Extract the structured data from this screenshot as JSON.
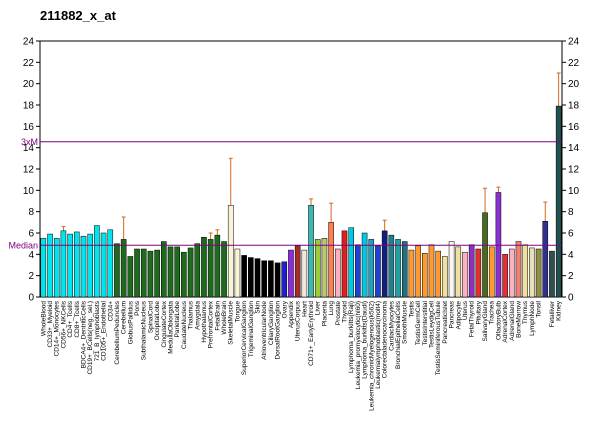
{
  "chart_data": {
    "type": "bar",
    "title": "211882_x_at",
    "categories": [
      "WholeBlood",
      "CD33+_Myeloid",
      "CD14+_Monocytes",
      "CD56+_NKCells",
      "CD4+_Tcells",
      "CD8+_Tcells",
      "BDCA4+_DentriticCells",
      "CD19+_BCells(neg._sel.)",
      "721_B_lymphoblasts",
      "CD105+_Endothelial",
      "CD34+",
      "CerebellumPeduncles",
      "Cerebellum",
      "GlobusPallidus",
      "Pons",
      "SubthalamicNucleus",
      "SpinalCord",
      "OccipitalLobe",
      "CingulateCortex",
      "MedullaOblongata",
      "ParietalLobe",
      "CaudateNucleus",
      "Thalamus",
      "Amygdala",
      "Hypothalamus",
      "PrefrontalCortex",
      "FetalBrain",
      "WholeBrain",
      "SkeletalMuscle",
      "Tongue",
      "SuperiorCervicalGanglion",
      "TrigeminalGanglion",
      "Skin",
      "AtrioventricularNode",
      "CiliaryGanglion",
      "DorsalRootGanglion",
      "Ovary",
      "Appendix",
      "UterusCorpus",
      "Heart",
      "CD71+_EarlyErythroid",
      "Liver",
      "Placenta",
      "Lung",
      "Prostate",
      "Thyroid",
      "Lymphoma_burkitts(Raji)",
      "Leukemia_promyelocytic(hl60)",
      "Lymphoma_burkitts(Daudi)",
      "Leukemia_chronicMyelogenous(k562)",
      "Leukemialymphoblastic(molt4)",
      "Colorectaladenocarcinoma",
      "CardiacMyocytes",
      "BronchialEpithelialCells",
      "SmoothMuscle",
      "Testis",
      "TestisGermCell",
      "TestisInterstitial",
      "TestisLeydigCell",
      "TestisSeminiferousTubule",
      "PancreaticIslet",
      "Pancreas",
      "Adipocyte",
      "Uterus",
      "FetalThyroid",
      "Pituitary",
      "SalivaryGland",
      "Trachea",
      "OlfactoryBulb",
      "AdrenalCortex",
      "AdrenalGland",
      "BoneMarrow",
      "Thymus",
      "LymphNode",
      "Tonsil",
      null,
      "Fetalliver",
      "Kidney"
    ],
    "values": [
      5.5,
      5.9,
      5.5,
      6.2,
      5.9,
      6.1,
      5.7,
      5.9,
      6.7,
      6.0,
      6.3,
      5.0,
      5.4,
      3.8,
      4.5,
      4.5,
      4.3,
      4.4,
      5.2,
      4.7,
      4.7,
      4.2,
      4.6,
      5.0,
      5.6,
      5.4,
      5.8,
      5.2,
      8.6,
      4.5,
      3.9,
      3.7,
      3.6,
      3.4,
      3.4,
      3.2,
      3.3,
      4.4,
      4.8,
      4.4,
      8.6,
      5.4,
      5.5,
      7.0,
      4.5,
      6.2,
      6.5,
      4.9,
      6.0,
      5.4,
      4.8,
      6.2,
      5.8,
      5.4,
      5.2,
      4.4,
      4.8,
      4.1,
      4.9,
      4.3,
      3.8,
      5.2,
      4.7,
      4.2,
      4.9,
      4.5,
      7.9,
      4.7,
      9.8,
      4.0,
      4.5,
      5.2,
      4.9,
      4.6,
      4.5,
      7.1,
      4.3,
      17.9
    ],
    "errors": [
      null,
      null,
      null,
      0.4,
      null,
      null,
      null,
      null,
      null,
      null,
      null,
      null,
      2.1,
      null,
      null,
      null,
      null,
      null,
      null,
      null,
      null,
      null,
      null,
      null,
      null,
      0.6,
      0.5,
      null,
      4.4,
      null,
      null,
      null,
      null,
      null,
      null,
      null,
      null,
      null,
      null,
      null,
      0.6,
      null,
      null,
      1.8,
      null,
      null,
      null,
      null,
      null,
      null,
      null,
      1.0,
      null,
      null,
      null,
      null,
      null,
      null,
      null,
      null,
      null,
      null,
      null,
      null,
      null,
      null,
      2.3,
      null,
      0.5,
      null,
      null,
      null,
      null,
      null,
      null,
      1.8,
      null,
      3.1
    ],
    "colors": [
      "#00e5ee",
      "#00e5ee",
      "#00e5ee",
      "#00e5ee",
      "#00e5ee",
      "#00e5ee",
      "#00e5ee",
      "#00e5ee",
      "#00e5ee",
      "#00e5ee",
      "#00e5ee",
      "#1e6b1e",
      "#1e6b1e",
      "#1e6b1e",
      "#1e6b1e",
      "#1e6b1e",
      "#1e6b1e",
      "#1e6b1e",
      "#1e6b1e",
      "#1e6b1e",
      "#1e6b1e",
      "#1e6b1e",
      "#1e6b1e",
      "#1e6b1e",
      "#1e6b1e",
      "#1e6b1e",
      "#1e6b1e",
      "#1e6b1e",
      "#f8f4d8",
      "#f8f4d8",
      "#000000",
      "#000000",
      "#000000",
      "#000000",
      "#000000",
      "#000000",
      "#2020d0",
      "#8a2be2",
      "#a52a2a",
      "#f0e6dc",
      "#3cb8b0",
      "#9acd32",
      "#b8c870",
      "#ff7f50",
      "#ffb0c0",
      "#e02020",
      "#00c8e0",
      "#2040d0",
      "#00c8e0",
      "#20a0c0",
      "#2040d0",
      "#102080",
      "#208090",
      "#20a0a0",
      "#207080",
      "#ff9a30",
      "#ff9a30",
      "#ff9a30",
      "#ff9a30",
      "#ff9a30",
      "#f0e0a0",
      "#f8f8f0",
      "#f0e0a0",
      "#ffb0c0",
      "#9030c0",
      "#e03030",
      "#4a6a20",
      "#ff9a30",
      "#8a30d0",
      "#e03030",
      "#ffb0c0",
      "#f08070",
      "#f0e0a0",
      "#e8e0b0",
      "#909040",
      "#303090",
      "#305050",
      "#205050"
    ],
    "ylim": [
      0,
      24
    ],
    "yticks": [
      0,
      2,
      4,
      6,
      8,
      10,
      12,
      14,
      16,
      18,
      20,
      22,
      24
    ],
    "median": 4.85,
    "median_label": "Median",
    "three_x_median": 14.55,
    "three_x_median_label": "3xM"
  }
}
